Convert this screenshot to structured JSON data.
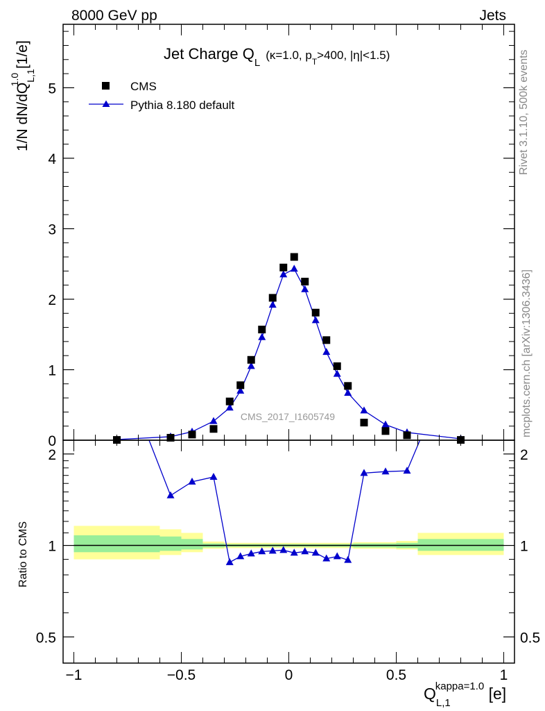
{
  "header": {
    "left": "8000 GeV pp",
    "right": "Jets"
  },
  "side_labels": {
    "rivet": "Rivet 3.1.10,  500k events",
    "mcplots": "mcplots.cern.ch [arXiv:1306.3436]"
  },
  "colors": {
    "mc": "#0000cc",
    "band_inner": "#99ee99",
    "band_outer": "#ffff99",
    "data": "#000000"
  },
  "chart_data": [
    {
      "type": "scatter",
      "title": "Jet Charge Q_L (κ=1.0, p_T>400, |η|<1.5)",
      "title_main": "Jet Charge Q",
      "title_sub": "L",
      "title_cond_a": "(κ=1.0, p",
      "title_cond_sub": "T",
      "title_cond_b": ">400, |η|<1.5)",
      "watermark": "CMS_2017_I1605749",
      "ylabel": "1/N dN/dQ_L,1^1.0 [1/e]",
      "ylabel_main": "1/N dN/dQ",
      "ylabel_sub": "L,1",
      "ylabel_sup": "1.0",
      "ylabel_unit": " [1/e]",
      "xlim": [
        -1.05,
        1.05
      ],
      "ylim": [
        0,
        5.9
      ],
      "yticks": [
        0,
        1,
        2,
        3,
        4,
        5
      ],
      "ytick_labels": [
        "0",
        "1",
        "2",
        "3",
        "4",
        "5"
      ],
      "legend": {
        "position": "top-left",
        "entries": [
          "CMS",
          "Pythia 8.180 default"
        ]
      },
      "series": [
        {
          "name": "CMS",
          "marker": "square",
          "x": [
            -0.8,
            -0.55,
            -0.45,
            -0.35,
            -0.275,
            -0.225,
            -0.175,
            -0.125,
            -0.075,
            -0.025,
            0.025,
            0.075,
            0.125,
            0.175,
            0.225,
            0.275,
            0.35,
            0.45,
            0.55,
            0.8
          ],
          "y": [
            0.004,
            0.035,
            0.08,
            0.16,
            0.55,
            0.78,
            1.14,
            1.57,
            2.02,
            2.45,
            2.6,
            2.25,
            1.81,
            1.42,
            1.05,
            0.77,
            0.25,
            0.13,
            0.07,
            0.004
          ]
        },
        {
          "name": "Pythia 8.180 default",
          "marker": "triangle",
          "x": [
            -0.8,
            -0.55,
            -0.45,
            -0.35,
            -0.275,
            -0.225,
            -0.175,
            -0.125,
            -0.075,
            -0.025,
            0.025,
            0.075,
            0.125,
            0.175,
            0.225,
            0.275,
            0.35,
            0.45,
            0.55,
            0.8
          ],
          "y": [
            0.01,
            0.05,
            0.12,
            0.27,
            0.46,
            0.7,
            1.05,
            1.46,
            1.92,
            2.35,
            2.43,
            2.14,
            1.7,
            1.25,
            0.94,
            0.67,
            0.42,
            0.22,
            0.11,
            0.02
          ]
        }
      ]
    },
    {
      "type": "line",
      "ylabel": "Ratio to CMS",
      "xlabel": "Q_L,1^kappa=1.0 [e]",
      "xlabel_main": "Q",
      "xlabel_sub": "L,1",
      "xlabel_sup": "kappa=1.0",
      "xlabel_unit": " [e]",
      "xlim": [
        -1.05,
        1.05
      ],
      "ylim": [
        0.41,
        2.22
      ],
      "yscale": "log",
      "yticks": [
        0.5,
        1,
        2
      ],
      "ytick_labels": [
        "0.5",
        "1",
        "2"
      ],
      "xticks": [
        -1,
        -0.5,
        0,
        0.5,
        1
      ],
      "xtick_labels": [
        "−1",
        "−0.5",
        "0",
        "0.5",
        "1"
      ],
      "reference_line": 1,
      "bands": [
        {
          "x0": -1.0,
          "x1": -0.6,
          "inner": [
            0.95,
            1.08
          ],
          "outer": [
            0.9,
            1.16
          ]
        },
        {
          "x0": -0.6,
          "x1": -0.5,
          "inner": [
            0.96,
            1.07
          ],
          "outer": [
            0.93,
            1.13
          ]
        },
        {
          "x0": -0.5,
          "x1": -0.4,
          "inner": [
            0.97,
            1.05
          ],
          "outer": [
            0.95,
            1.1
          ]
        },
        {
          "x0": -0.4,
          "x1": -0.3,
          "inner": [
            0.985,
            1.015
          ],
          "outer": [
            0.975,
            1.03
          ]
        },
        {
          "x0": -0.3,
          "x1": 0.3,
          "inner": [
            0.99,
            1.01
          ],
          "outer": [
            0.98,
            1.02
          ]
        },
        {
          "x0": 0.3,
          "x1": 0.4,
          "inner": [
            0.985,
            1.015
          ],
          "outer": [
            0.975,
            1.025
          ]
        },
        {
          "x0": 0.4,
          "x1": 0.5,
          "inner": [
            0.985,
            1.015
          ],
          "outer": [
            0.975,
            1.025
          ]
        },
        {
          "x0": 0.5,
          "x1": 0.6,
          "inner": [
            0.98,
            1.02
          ],
          "outer": [
            0.97,
            1.035
          ]
        },
        {
          "x0": 0.6,
          "x1": 1.0,
          "inner": [
            0.96,
            1.05
          ],
          "outer": [
            0.93,
            1.1
          ]
        }
      ],
      "series": [
        {
          "name": "Pythia 8.180 default",
          "x": [
            -0.55,
            -0.45,
            -0.35,
            -0.275,
            -0.225,
            -0.175,
            -0.125,
            -0.075,
            -0.025,
            0.025,
            0.075,
            0.125,
            0.175,
            0.225,
            0.275,
            0.35,
            0.45,
            0.55
          ],
          "y": [
            1.46,
            1.62,
            1.68,
            0.88,
            0.92,
            0.94,
            0.955,
            0.96,
            0.965,
            0.945,
            0.955,
            0.945,
            0.905,
            0.92,
            0.895,
            1.73,
            1.75,
            1.76
          ]
        }
      ],
      "offscale_lines": [
        {
          "from": {
            "x": -0.65,
            "y": 2.22
          },
          "to": {
            "x": -0.55,
            "y": 1.46
          }
        },
        {
          "from": {
            "x": 0.55,
            "y": 1.76
          },
          "to": {
            "x": 0.61,
            "y": 2.22
          }
        }
      ]
    }
  ]
}
